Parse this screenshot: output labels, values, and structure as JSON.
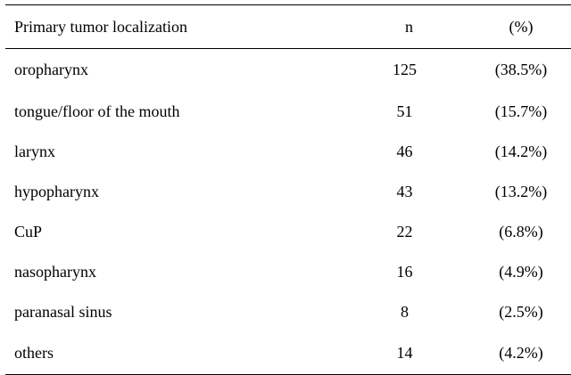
{
  "table": {
    "headers": {
      "label": "Primary tumor localization",
      "n": "n",
      "pct": "(%)"
    },
    "rows": [
      {
        "label": "oropharynx",
        "n": "125",
        "pct": "(38.5%)"
      },
      {
        "label": "tongue/floor of the mouth",
        "n": "51",
        "pct": "(15.7%)"
      },
      {
        "label": "larynx",
        "n": "46",
        "pct": "(14.2%)"
      },
      {
        "label": "hypopharynx",
        "n": "43",
        "pct": "(13.2%)"
      },
      {
        "label": "CuP",
        "n": "22",
        "pct": "(6.8%)"
      },
      {
        "label": "nasopharynx",
        "n": "16",
        "pct": "(4.9%)"
      },
      {
        "label": "paranasal sinus",
        "n": "8",
        "pct": "(2.5%)"
      },
      {
        "label": "others",
        "n": "14",
        "pct": "(4.2%)"
      }
    ]
  }
}
